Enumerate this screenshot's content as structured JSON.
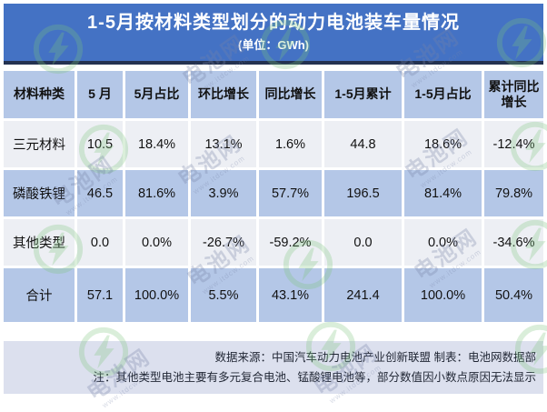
{
  "title": {
    "main": "1-5月按材料类型划分的动力电池装车量情况",
    "unit": "(单位：GWh)"
  },
  "table": {
    "headers": [
      "材料种类",
      "5 月",
      "5月占比",
      "环比增长",
      "同比增长",
      "1-5月累计",
      "1-5月占比",
      "累计同比增长"
    ],
    "rows": [
      [
        "三元材料",
        "10.5",
        "18.4%",
        "13.1%",
        "1.6%",
        "44.8",
        "18.6%",
        "-12.4%"
      ],
      [
        "磷酸铁锂",
        "46.5",
        "81.6%",
        "3.9%",
        "57.7%",
        "196.5",
        "81.4%",
        "79.8%"
      ],
      [
        "其他类型",
        "0.0",
        "0.0%",
        "-26.7%",
        "-59.2%",
        "0.0",
        "0.0%",
        "-34.6%"
      ],
      [
        "合计",
        "57.1",
        "100.0%",
        "5.5%",
        "43.1%",
        "241.4",
        "100.0%",
        "50.4%"
      ]
    ]
  },
  "footer": {
    "source_line": "数据来源：中国汽车动力电池产业创新联盟 制表：电池网数据部",
    "note_line": "注：其他类型电池主要有多元复合电池、锰酸锂电池等，部分数值因小数点原因无法显示"
  },
  "watermark": {
    "brand": "电池网",
    "url": "www.itdcw.com"
  },
  "colors": {
    "title_bar": "#4472c4",
    "title_bar_edge": "#243250",
    "header_row": "#b4c7e7",
    "band_light": "#edeff4",
    "band_blue": "#b4c7e7",
    "footer_bg": "#dce0ee",
    "grid_line": "#ffffff",
    "watermark_green": "#7cc67c"
  },
  "chart_data": {
    "type": "table",
    "title": "1-5月按材料类型划分的动力电池装车量情况",
    "unit": "GWh",
    "columns": [
      "材料种类",
      "5 月",
      "5月占比",
      "环比增长",
      "同比增长",
      "1-5月累计",
      "1-5月占比",
      "累计同比增长"
    ],
    "rows": [
      {
        "材料种类": "三元材料",
        "5月": 10.5,
        "5月占比": "18.4%",
        "环比增长": "13.1%",
        "同比增长": "1.6%",
        "1-5月累计": 44.8,
        "1-5月占比": "18.6%",
        "累计同比增长": "-12.4%"
      },
      {
        "材料种类": "磷酸铁锂",
        "5月": 46.5,
        "5月占比": "81.6%",
        "环比增长": "3.9%",
        "同比增长": "57.7%",
        "1-5月累计": 196.5,
        "1-5月占比": "81.4%",
        "累计同比增长": "79.8%"
      },
      {
        "材料种类": "其他类型",
        "5月": 0.0,
        "5月占比": "0.0%",
        "环比增长": "-26.7%",
        "同比增长": "-59.2%",
        "1-5月累计": 0.0,
        "1-5月占比": "0.0%",
        "累计同比增长": "-34.6%"
      },
      {
        "材料种类": "合计",
        "5月": 57.1,
        "5月占比": "100.0%",
        "环比增长": "5.5%",
        "同比增长": "43.1%",
        "1-5月累计": 241.4,
        "1-5月占比": "100.0%",
        "累计同比增长": "50.4%"
      }
    ],
    "source": "数据来源：中国汽车动力电池产业创新联盟 制表：电池网数据部",
    "note": "注：其他类型电池主要有多元复合电池、锰酸锂电池等，部分数值因小数点原因无法显示"
  }
}
